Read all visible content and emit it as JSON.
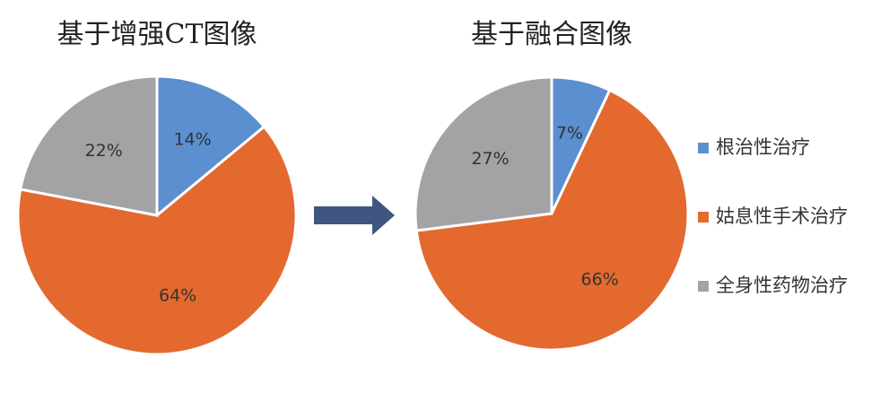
{
  "chart_data": [
    {
      "type": "pie",
      "title": "基于增强CT图像",
      "values": [
        14,
        64,
        22
      ],
      "value_labels": [
        "14%",
        "64%",
        "22%"
      ],
      "colors": [
        "#5b8fd0",
        "#e4692f",
        "#a3a3a5"
      ]
    },
    {
      "type": "pie",
      "title": "基于融合图像",
      "categories": [
        "根治性治疗",
        "姑息性手术治疗",
        "全身性药物治疗"
      ],
      "values": [
        7,
        66,
        27
      ],
      "value_labels": [
        "7%",
        "66%",
        "27%"
      ],
      "colors": [
        "#5b8fd0",
        "#e4692f",
        "#a3a3a5"
      ]
    }
  ]
}
